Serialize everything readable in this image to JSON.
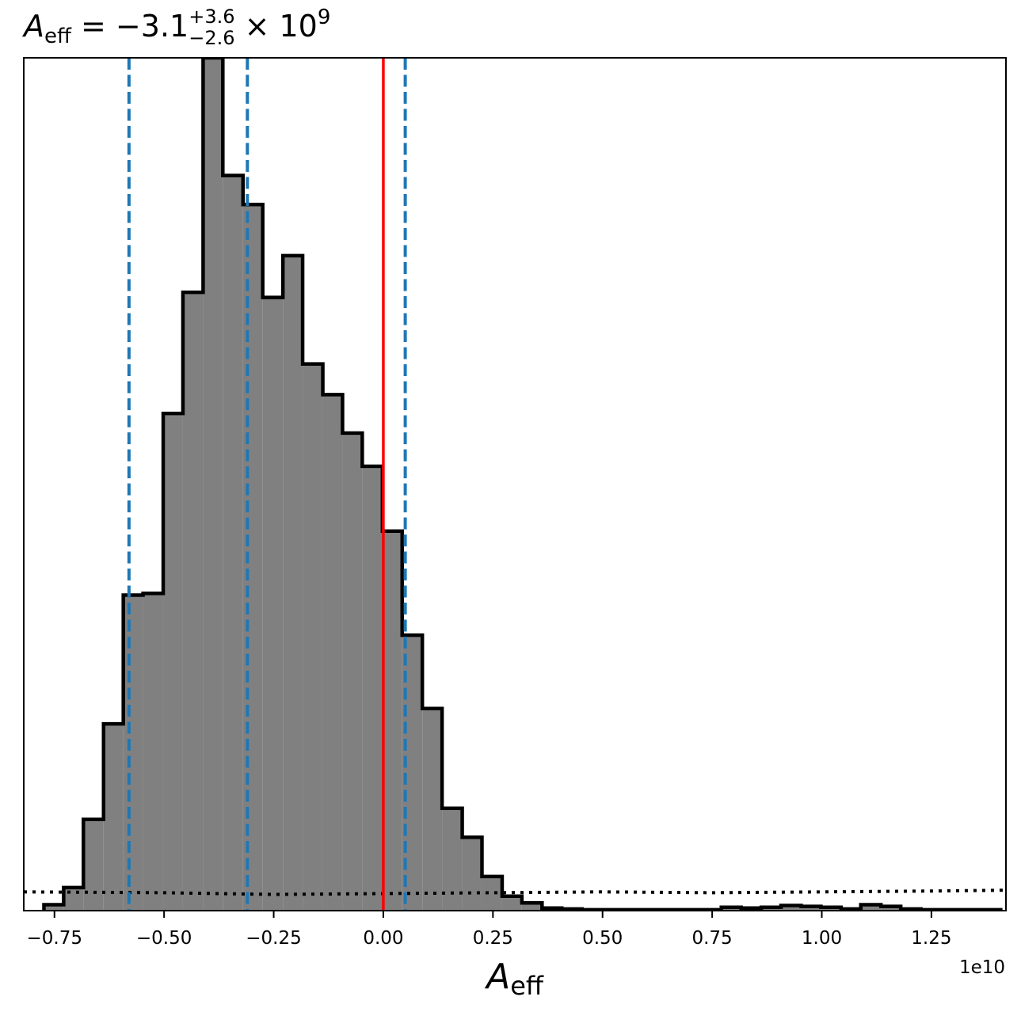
{
  "chart_data": {
    "type": "histogram",
    "title": {
      "symbol": "A",
      "symbol_sub": "eff",
      "equals": " = ",
      "median": "−3.1",
      "err_plus": "+3.6",
      "err_minus": "−2.6",
      "times": " × 10",
      "exponent": "9"
    },
    "xlabel": {
      "symbol": "A",
      "sub": "eff"
    },
    "x_offset_label": "1e10",
    "x_scale": 10000000000.0,
    "xlim": [
      -0.82,
      1.42
    ],
    "ylim": [
      0,
      1.0
    ],
    "x_ticks": [
      -0.75,
      -0.5,
      -0.25,
      0.0,
      0.25,
      0.5,
      0.75,
      1.0,
      1.25
    ],
    "x_tick_labels": [
      "−0.75",
      "−0.50",
      "−0.25",
      "0.00",
      "0.25",
      "0.50",
      "0.75",
      "1.00",
      "1.25"
    ],
    "yaxis_ticks": "none",
    "bins": {
      "edges": [
        -0.774,
        -0.729,
        -0.684,
        -0.638,
        -0.593,
        -0.548,
        -0.502,
        -0.457,
        -0.411,
        -0.366,
        -0.32,
        -0.275,
        -0.229,
        -0.184,
        -0.138,
        -0.093,
        -0.048,
        -0.002,
        0.043,
        0.089,
        0.134,
        0.18,
        0.225,
        0.271,
        0.316,
        0.362,
        0.407,
        0.453,
        0.498,
        0.544,
        0.589,
        0.634,
        0.68,
        0.725,
        0.771,
        0.816,
        0.862,
        0.907,
        0.953,
        0.998,
        1.044,
        1.089,
        1.135,
        1.18,
        1.226,
        1.271,
        1.317,
        1.362,
        1.408
      ],
      "heights": [
        0.007,
        0.027,
        0.107,
        0.219,
        0.37,
        0.372,
        0.583,
        0.725,
        1.0,
        0.862,
        0.828,
        0.719,
        0.768,
        0.641,
        0.605,
        0.56,
        0.521,
        0.445,
        0.323,
        0.237,
        0.12,
        0.086,
        0.04,
        0.017,
        0.009,
        0.003,
        0.002,
        0.001,
        0.001,
        0.001,
        0.001,
        0.001,
        0.001,
        0.001,
        0.004,
        0.003,
        0.004,
        0.006,
        0.005,
        0.004,
        0.002,
        0.007,
        0.005,
        0.002,
        0.001,
        0.001,
        0.001,
        0.001
      ],
      "fill_color": "#808080",
      "edge_color": "#000000"
    },
    "vertical_lines": [
      {
        "x": -0.58,
        "color": "#1f77b4",
        "style": "dashed",
        "name": "lower-quantile"
      },
      {
        "x": -0.31,
        "color": "#1f77b4",
        "style": "dashed",
        "name": "median"
      },
      {
        "x": 0.05,
        "color": "#1f77b4",
        "style": "dashed",
        "name": "upper-quantile"
      },
      {
        "x": 0.0,
        "color": "#ff0000",
        "style": "solid",
        "name": "true-value"
      }
    ],
    "prior_line": {
      "style": "dotted",
      "color": "#000000",
      "x": [
        -0.82,
        -0.5,
        -0.25,
        0.0,
        0.25,
        0.5,
        0.75,
        1.0,
        1.25,
        1.42
      ],
      "y": [
        0.022,
        0.021,
        0.019,
        0.02,
        0.021,
        0.022,
        0.021,
        0.022,
        0.023,
        0.024
      ]
    },
    "grid": false,
    "legend": "none"
  }
}
